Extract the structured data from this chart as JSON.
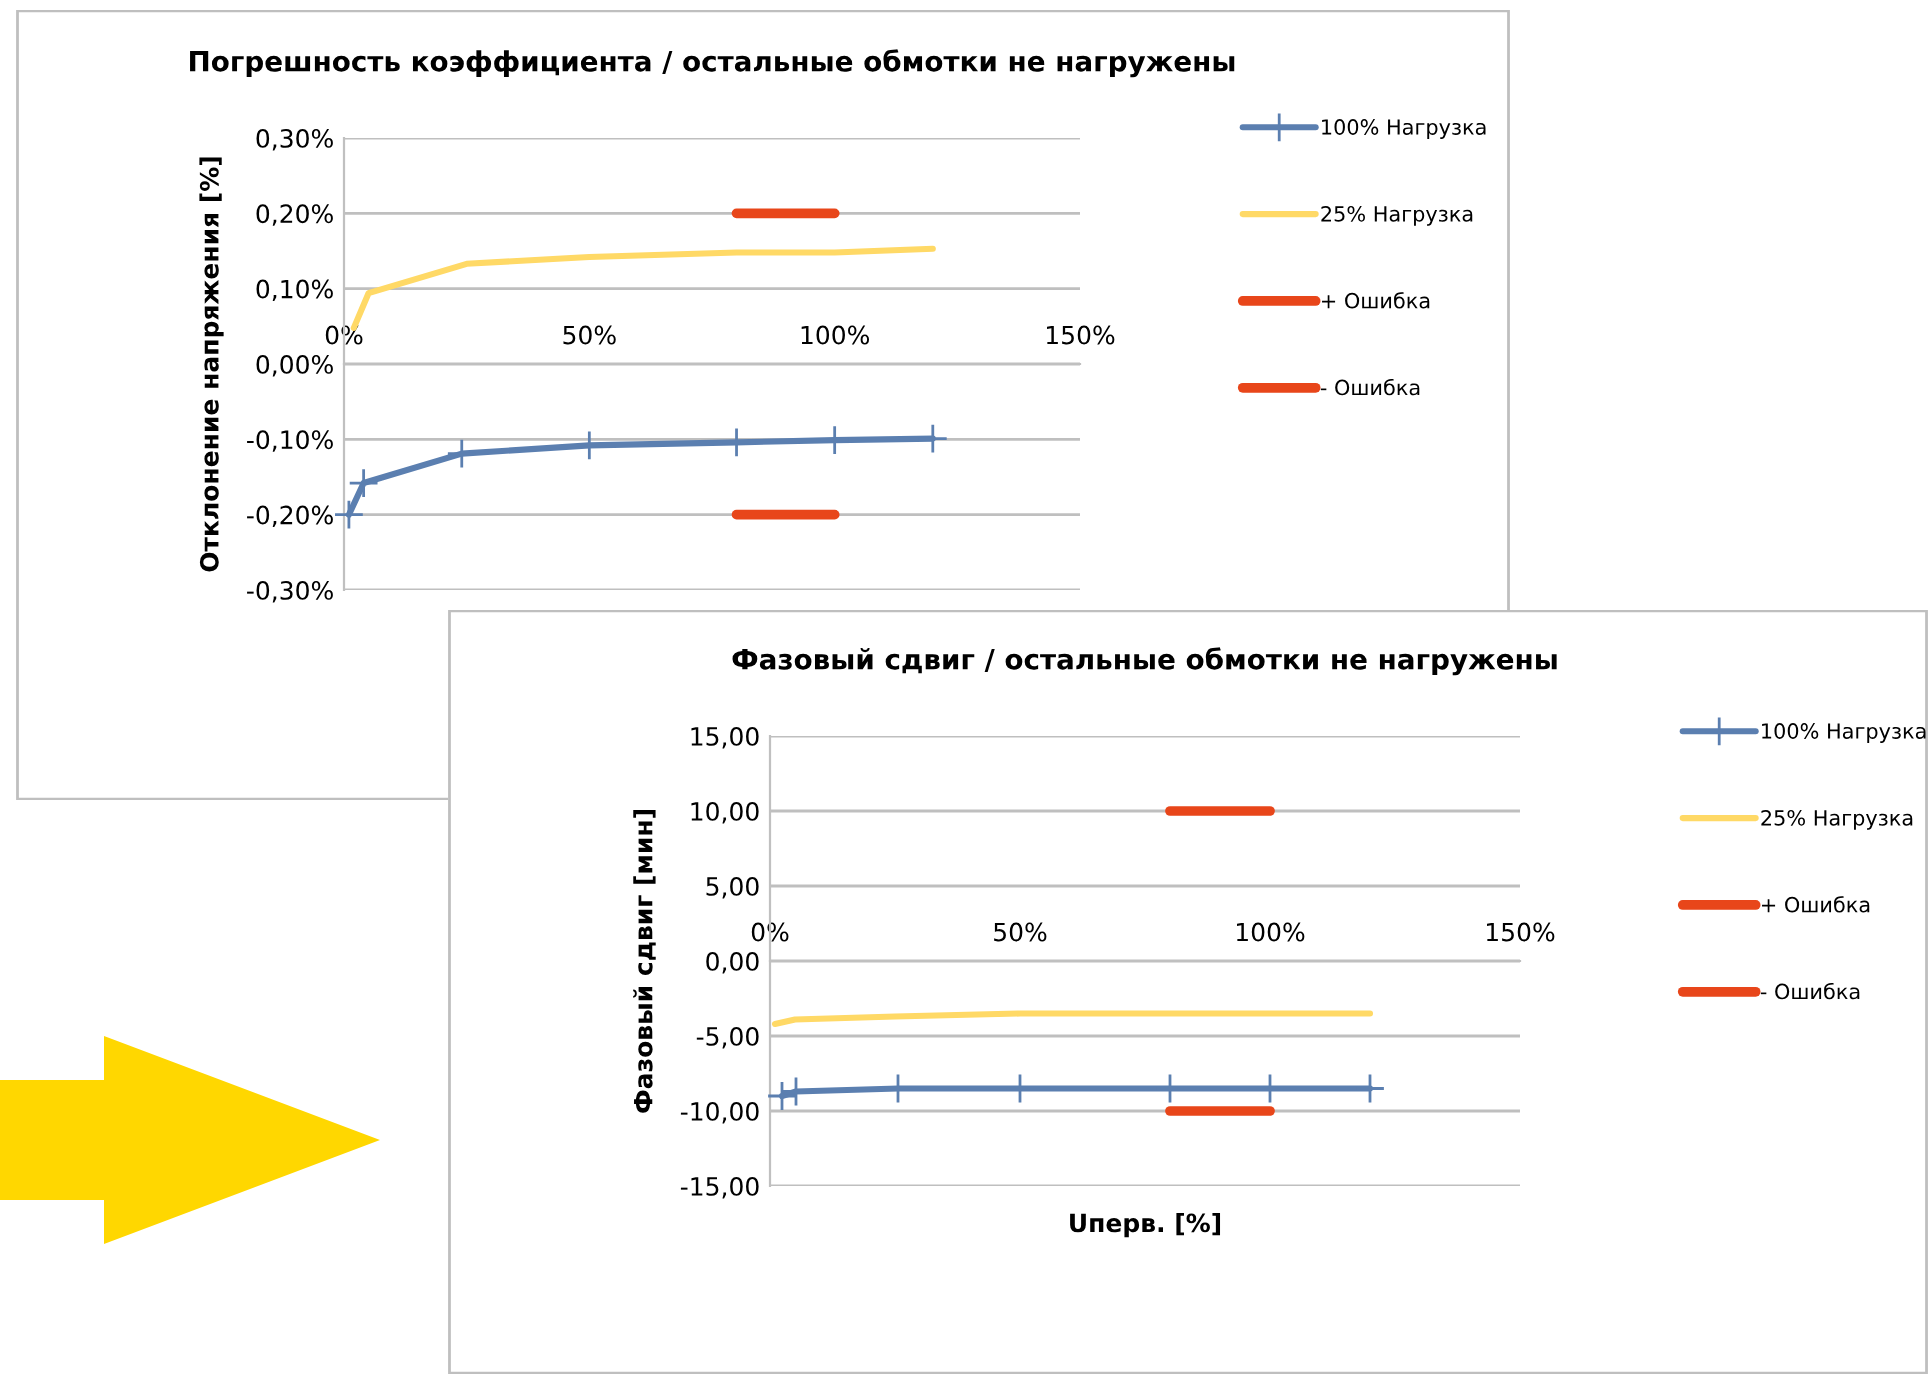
{
  "chart_data": [
    {
      "type": "line",
      "title": "Погрешность коэффициента / остальные обмотки не нагружены",
      "ylabel": "Отклонение напряжения [%]",
      "xlim": [
        0,
        150
      ],
      "xticks": [
        {
          "value": 0,
          "label": "0%"
        },
        {
          "value": 50,
          "label": "50%"
        },
        {
          "value": 100,
          "label": "100%"
        },
        {
          "value": 150,
          "label": "150%"
        }
      ],
      "ylim": [
        -0.3,
        0.3
      ],
      "yticks": [
        {
          "value": -0.3,
          "label": "-0,30%"
        },
        {
          "value": -0.2,
          "label": "-0,20%"
        },
        {
          "value": -0.1,
          "label": "-0,10%"
        },
        {
          "value": 0,
          "label": "0,00%"
        },
        {
          "value": 0.1,
          "label": "0,10%"
        },
        {
          "value": 0.2,
          "label": "0,20%"
        },
        {
          "value": 0.3,
          "label": "0,30%"
        }
      ],
      "grid": "y",
      "legend": "right",
      "series": [
        {
          "name": "100% Нагрузка",
          "color": "#5b7fb0",
          "marker": "cross",
          "x": [
            1,
            4,
            24,
            50,
            80,
            100,
            120
          ],
          "values": [
            -0.2,
            -0.158,
            -0.119,
            -0.108,
            -0.104,
            -0.101,
            -0.099
          ]
        },
        {
          "name": "25% Нагрузка",
          "color": "#ffd966",
          "marker": "none",
          "x": [
            2,
            5,
            25,
            50,
            80,
            100,
            120
          ],
          "values": [
            0.048,
            0.094,
            0.133,
            0.142,
            0.148,
            0.148,
            0.153
          ]
        },
        {
          "name": "+ Ошибка",
          "color": "#e8461a",
          "marker": "none",
          "x": [
            80,
            100
          ],
          "values": [
            0.2,
            0.2
          ]
        },
        {
          "name": "- Ошибка",
          "color": "#e8461a",
          "marker": "none",
          "x": [
            80,
            100
          ],
          "values": [
            -0.2,
            -0.2
          ]
        }
      ]
    },
    {
      "type": "line",
      "title": "Фазовый сдвиг / остальные обмотки не нагружены",
      "ylabel": "Фазовый сдвиг [мин]",
      "xlabel": "Uперв. [%]",
      "xlim": [
        0,
        150
      ],
      "xticks": [
        {
          "value": 0,
          "label": "0%"
        },
        {
          "value": 50,
          "label": "50%"
        },
        {
          "value": 100,
          "label": "100%"
        },
        {
          "value": 150,
          "label": "150%"
        }
      ],
      "ylim": [
        -15,
        15
      ],
      "yticks": [
        {
          "value": -15,
          "label": "-15,00"
        },
        {
          "value": -10,
          "label": "-10,00"
        },
        {
          "value": -5,
          "label": "-5,00"
        },
        {
          "value": 0,
          "label": "0,00"
        },
        {
          "value": 5,
          "label": "5,00"
        },
        {
          "value": 10,
          "label": "10,00"
        },
        {
          "value": 15,
          "label": "15,00"
        }
      ],
      "grid": "y",
      "legend": "right",
      "series": [
        {
          "name": "100% Нагрузка",
          "color": "#5b7fb0",
          "marker": "cross",
          "x": [
            2.4,
            5.2,
            25.6,
            50,
            80,
            100,
            120
          ],
          "values": [
            -9.0,
            -8.7,
            -8.5,
            -8.5,
            -8.5,
            -8.5,
            -8.5
          ]
        },
        {
          "name": "25% Нагрузка",
          "color": "#ffd966",
          "marker": "none",
          "x": [
            1,
            5,
            25,
            50,
            80,
            100,
            120
          ],
          "values": [
            -4.2,
            -3.9,
            -3.7,
            -3.5,
            -3.5,
            -3.5,
            -3.5
          ]
        },
        {
          "name": "+ Ошибка",
          "color": "#e8461a",
          "marker": "none",
          "x": [
            80,
            100
          ],
          "values": [
            10,
            10
          ]
        },
        {
          "name": "- Ошибка",
          "color": "#e8461a",
          "marker": "none",
          "x": [
            80,
            100
          ],
          "values": [
            -10,
            -10
          ]
        }
      ]
    }
  ]
}
